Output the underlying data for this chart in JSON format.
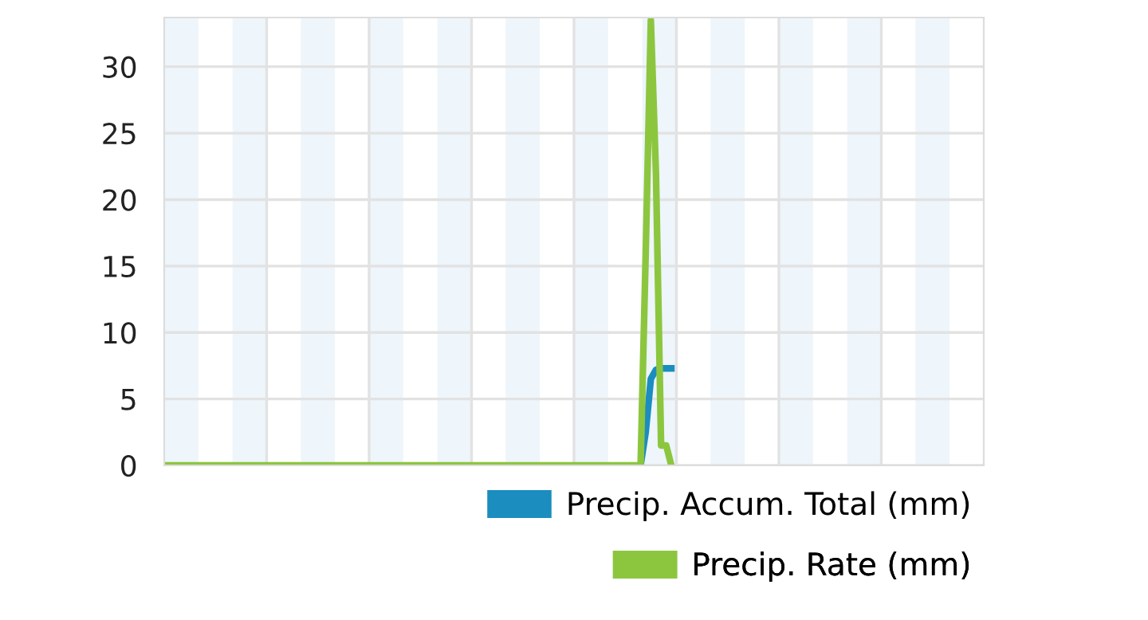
{
  "chart_data": {
    "type": "line",
    "categories": [
      null,
      null,
      null,
      null,
      null,
      null,
      null,
      null,
      null,
      null,
      null,
      null,
      null,
      null,
      null,
      null,
      null,
      null,
      null,
      null,
      null,
      null,
      null,
      null,
      null,
      null,
      null,
      null,
      null,
      null,
      null,
      null,
      null,
      null,
      null,
      null,
      null,
      null,
      null,
      null,
      null,
      null,
      null,
      null,
      null,
      null,
      null,
      null,
      null,
      null,
      null,
      null,
      null,
      null,
      null,
      null,
      null,
      null,
      null,
      null,
      null,
      null,
      null,
      null,
      null,
      null,
      null,
      null,
      null,
      null,
      null,
      null,
      null,
      null,
      null,
      null,
      null,
      null,
      null,
      null,
      null,
      null,
      null,
      null,
      null,
      null,
      null,
      null,
      null,
      null,
      null,
      null,
      null,
      null,
      null,
      null,
      null,
      null,
      null,
      null,
      null,
      null,
      null,
      null,
      null,
      null,
      null,
      null,
      null,
      null,
      null,
      null,
      null,
      null,
      null,
      null,
      null,
      null,
      null,
      null,
      null,
      null,
      null,
      null,
      null,
      null,
      null,
      null,
      null,
      null,
      null,
      null,
      null,
      null,
      null,
      null,
      null,
      null,
      null,
      null,
      null,
      null,
      null,
      null,
      null,
      null,
      null,
      null,
      null,
      null,
      null,
      null,
      null,
      null,
      null,
      null,
      null,
      null,
      null,
      null,
      null
    ],
    "ylim": [
      0,
      33.7
    ],
    "yticks": [
      0,
      5,
      10,
      15,
      20,
      25,
      30
    ],
    "tick_labels": "y",
    "grid": "y",
    "legend": "bottom right",
    "marker": "none",
    "line_style": "solid",
    "series": [
      {
        "name": "Precip. Accum. Total (mm)",
        "color": "#1b8dbf",
        "values": [
          null,
          null,
          null,
          null,
          null,
          null,
          null,
          null,
          null,
          null,
          null,
          null,
          null,
          null,
          null,
          null,
          null,
          null,
          null,
          null,
          null,
          null,
          null,
          null,
          null,
          null,
          null,
          null,
          null,
          null,
          null,
          null,
          null,
          null,
          null,
          null,
          null,
          null,
          null,
          null,
          null,
          null,
          null,
          null,
          null,
          null,
          null,
          null,
          null,
          null,
          null,
          null,
          null,
          null,
          null,
          null,
          null,
          null,
          null,
          null,
          null,
          null,
          null,
          null,
          null,
          null,
          null,
          null,
          null,
          null,
          null,
          null,
          null,
          null,
          null,
          null,
          null,
          null,
          null,
          null,
          null,
          null,
          null,
          null,
          null,
          null,
          null,
          null,
          null,
          null,
          null,
          null,
          null,
          0,
          2.5,
          6.5,
          7.2,
          7.3,
          7.3,
          7.3,
          null,
          null,
          null,
          null,
          null,
          null,
          null,
          null,
          null,
          null,
          null,
          null,
          null,
          null,
          null,
          null,
          null,
          null,
          null,
          null,
          null,
          null,
          null,
          null,
          null,
          null,
          null,
          null,
          null,
          null,
          null,
          null,
          null,
          null,
          null,
          null,
          null,
          null,
          null,
          null,
          null,
          null,
          null,
          null,
          null,
          null,
          null,
          null,
          null,
          null,
          null,
          null,
          null,
          null,
          null,
          null,
          null,
          null,
          null,
          null,
          null
        ]
      },
      {
        "name": "Precip. Rate (mm)",
        "color": "#8cc63f",
        "values": [
          0,
          0,
          0,
          0,
          0,
          0,
          0,
          0,
          0,
          0,
          0,
          0,
          0,
          0,
          0,
          0,
          0,
          0,
          0,
          0,
          0,
          0,
          0,
          0,
          0,
          0,
          0,
          0,
          0,
          0,
          0,
          0,
          0,
          0,
          0,
          0,
          0,
          0,
          0,
          0,
          0,
          0,
          0,
          0,
          0,
          0,
          0,
          0,
          0,
          0,
          0,
          0,
          0,
          0,
          0,
          0,
          0,
          0,
          0,
          0,
          0,
          0,
          0,
          0,
          0,
          0,
          0,
          0,
          0,
          0,
          0,
          0,
          0,
          0,
          0,
          0,
          0,
          0,
          0,
          0,
          0,
          0,
          0,
          0,
          0,
          0,
          0,
          0,
          0,
          0,
          0,
          0,
          0,
          0,
          16,
          33.5,
          22,
          1.5,
          1.5,
          0,
          null,
          null,
          null,
          null,
          null,
          null,
          null,
          null,
          null,
          null,
          null,
          null,
          null,
          null,
          null,
          null,
          null,
          null,
          null,
          null,
          null,
          null,
          null,
          null,
          null,
          null,
          null,
          null,
          null,
          null,
          null,
          null,
          null,
          null,
          null,
          null,
          null,
          null,
          null,
          null,
          null,
          null,
          null,
          null,
          null,
          null,
          null,
          null,
          null,
          null,
          null,
          null,
          null,
          null,
          null,
          null,
          null,
          null,
          null,
          null,
          null
        ]
      }
    ]
  }
}
